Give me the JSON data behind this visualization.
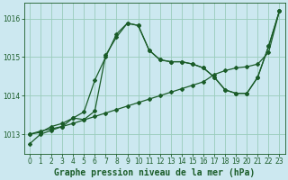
{
  "title": "Graphe pression niveau de la mer (hPa)",
  "bg_color": "#cce8f0",
  "grid_color": "#99ccbb",
  "line_color": "#1a5c28",
  "xlim": [
    -0.5,
    23.5
  ],
  "ylim": [
    1012.5,
    1016.4
  ],
  "yticks": [
    1013,
    1014,
    1015,
    1016
  ],
  "xticks": [
    0,
    1,
    2,
    3,
    4,
    5,
    6,
    7,
    8,
    9,
    10,
    11,
    12,
    13,
    14,
    15,
    16,
    17,
    18,
    19,
    20,
    21,
    22,
    23
  ],
  "line1_x": [
    0,
    1,
    2,
    3,
    4,
    5,
    6,
    7,
    8,
    9,
    10,
    11,
    12,
    13,
    14,
    15,
    16,
    17,
    18,
    19,
    20,
    21,
    22,
    23
  ],
  "line1_y": [
    1012.75,
    1013.0,
    1013.1,
    1013.2,
    1013.42,
    1013.38,
    1013.6,
    1015.05,
    1015.52,
    1015.88,
    1015.82,
    1015.18,
    1014.93,
    1014.88,
    1014.88,
    1014.82,
    1014.72,
    1014.48,
    1014.15,
    1014.06,
    1014.06,
    1014.48,
    1015.28,
    1016.2
  ],
  "line2_x": [
    0,
    1,
    2,
    3,
    4,
    5,
    6,
    7,
    8,
    9,
    10,
    11,
    12,
    13,
    14,
    15,
    16,
    17,
    18,
    19,
    20,
    21,
    22,
    23
  ],
  "line2_y": [
    1013.0,
    1013.05,
    1013.2,
    1013.28,
    1013.42,
    1013.58,
    1014.4,
    1015.0,
    1015.6,
    1015.88,
    1015.82,
    1015.18,
    1014.93,
    1014.88,
    1014.88,
    1014.82,
    1014.72,
    1014.48,
    1014.15,
    1014.06,
    1014.06,
    1014.48,
    1015.28,
    1016.2
  ],
  "line3_x": [
    0,
    1,
    2,
    3,
    4,
    5,
    6,
    7,
    8,
    9,
    10,
    11,
    12,
    13,
    14,
    15,
    16,
    17,
    18,
    19,
    20,
    21,
    22,
    23
  ],
  "line3_y": [
    1013.0,
    1013.08,
    1013.14,
    1013.2,
    1013.28,
    1013.37,
    1013.46,
    1013.55,
    1013.64,
    1013.73,
    1013.82,
    1013.91,
    1014.0,
    1014.09,
    1014.18,
    1014.27,
    1014.36,
    1014.55,
    1014.65,
    1014.72,
    1014.75,
    1014.82,
    1015.12,
    1016.2
  ],
  "title_fontsize": 7,
  "tick_fontsize": 5.5,
  "marker": "D",
  "markersize": 2.0,
  "linewidth": 0.9
}
